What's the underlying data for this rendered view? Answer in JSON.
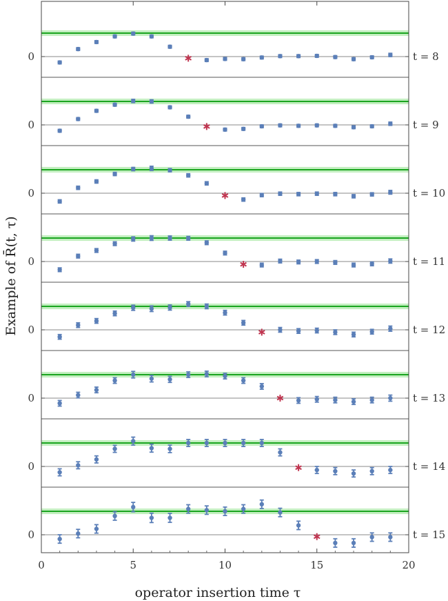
{
  "chart_data": {
    "type": "scatter",
    "xlabel": "operator insertion time τ",
    "ylabel": "Example of R̄(t, τ)",
    "xlim": [
      0,
      20
    ],
    "x_ticks": [
      "0",
      "5",
      "10",
      "15",
      "20"
    ],
    "y_tick_label": "0",
    "grid": false,
    "colors": {
      "points": "#5b7fb8",
      "starred": "#c0344f",
      "band_line": "#1aa520",
      "band_fill": "#b8ecb5",
      "separator": "#555555"
    },
    "panels": [
      {
        "label": "t = 8",
        "t": 8,
        "band": 1.0,
        "band_err": 0.12,
        "points": [
          {
            "x": 1,
            "y": -0.25,
            "e": 0.06
          },
          {
            "x": 2,
            "y": 0.32,
            "e": 0.06
          },
          {
            "x": 3,
            "y": 0.62,
            "e": 0.06
          },
          {
            "x": 4,
            "y": 0.86,
            "e": 0.06
          },
          {
            "x": 5,
            "y": 0.98,
            "e": 0.06
          },
          {
            "x": 6,
            "y": 0.86,
            "e": 0.06
          },
          {
            "x": 7,
            "y": 0.42,
            "e": 0.06
          },
          {
            "x": 8,
            "y": -0.07,
            "e": 0.06,
            "star": true
          },
          {
            "x": 9,
            "y": -0.15,
            "e": 0.06
          },
          {
            "x": 10,
            "y": -0.1,
            "e": 0.06
          },
          {
            "x": 11,
            "y": -0.11,
            "e": 0.06
          },
          {
            "x": 12,
            "y": -0.04,
            "e": 0.06
          },
          {
            "x": 13,
            "y": 0.02,
            "e": 0.06
          },
          {
            "x": 14,
            "y": 0.02,
            "e": 0.06
          },
          {
            "x": 15,
            "y": 0.03,
            "e": 0.06
          },
          {
            "x": 16,
            "y": -0.02,
            "e": 0.06
          },
          {
            "x": 17,
            "y": -0.11,
            "e": 0.06
          },
          {
            "x": 18,
            "y": -0.03,
            "e": 0.06
          },
          {
            "x": 19,
            "y": 0.07,
            "e": 0.07
          }
        ]
      },
      {
        "label": "t = 9",
        "t": 9,
        "band": 1.0,
        "band_err": 0.12,
        "points": [
          {
            "x": 1,
            "y": -0.25,
            "e": 0.06
          },
          {
            "x": 2,
            "y": 0.25,
            "e": 0.06
          },
          {
            "x": 3,
            "y": 0.6,
            "e": 0.06
          },
          {
            "x": 4,
            "y": 0.86,
            "e": 0.06
          },
          {
            "x": 5,
            "y": 1.02,
            "e": 0.07
          },
          {
            "x": 6,
            "y": 1.0,
            "e": 0.07
          },
          {
            "x": 7,
            "y": 0.75,
            "e": 0.06
          },
          {
            "x": 8,
            "y": 0.35,
            "e": 0.06
          },
          {
            "x": 9,
            "y": -0.07,
            "e": 0.06,
            "star": true
          },
          {
            "x": 10,
            "y": -0.2,
            "e": 0.06
          },
          {
            "x": 11,
            "y": -0.17,
            "e": 0.06
          },
          {
            "x": 12,
            "y": -0.06,
            "e": 0.06
          },
          {
            "x": 13,
            "y": -0.02,
            "e": 0.06
          },
          {
            "x": 14,
            "y": -0.04,
            "e": 0.06
          },
          {
            "x": 15,
            "y": -0.02,
            "e": 0.06
          },
          {
            "x": 16,
            "y": -0.04,
            "e": 0.06
          },
          {
            "x": 17,
            "y": -0.1,
            "e": 0.06
          },
          {
            "x": 18,
            "y": -0.06,
            "e": 0.06
          },
          {
            "x": 19,
            "y": 0.05,
            "e": 0.07
          }
        ]
      },
      {
        "label": "t = 10",
        "t": 10,
        "band": 1.0,
        "band_err": 0.12,
        "points": [
          {
            "x": 1,
            "y": -0.35,
            "e": 0.07
          },
          {
            "x": 2,
            "y": 0.23,
            "e": 0.07
          },
          {
            "x": 3,
            "y": 0.5,
            "e": 0.07
          },
          {
            "x": 4,
            "y": 0.82,
            "e": 0.07
          },
          {
            "x": 5,
            "y": 1.03,
            "e": 0.07
          },
          {
            "x": 6,
            "y": 1.06,
            "e": 0.09
          },
          {
            "x": 7,
            "y": 0.98,
            "e": 0.07
          },
          {
            "x": 8,
            "y": 0.76,
            "e": 0.07
          },
          {
            "x": 9,
            "y": 0.42,
            "e": 0.07
          },
          {
            "x": 10,
            "y": -0.1,
            "e": 0.07,
            "star": true
          },
          {
            "x": 11,
            "y": -0.27,
            "e": 0.07
          },
          {
            "x": 12,
            "y": -0.08,
            "e": 0.07
          },
          {
            "x": 13,
            "y": -0.02,
            "e": 0.07
          },
          {
            "x": 14,
            "y": -0.04,
            "e": 0.07
          },
          {
            "x": 15,
            "y": -0.02,
            "e": 0.07
          },
          {
            "x": 16,
            "y": -0.04,
            "e": 0.07
          },
          {
            "x": 17,
            "y": -0.13,
            "e": 0.07
          },
          {
            "x": 18,
            "y": -0.05,
            "e": 0.07
          },
          {
            "x": 19,
            "y": 0.04,
            "e": 0.08
          }
        ]
      },
      {
        "label": "t = 11",
        "t": 11,
        "band": 1.0,
        "band_err": 0.12,
        "points": [
          {
            "x": 1,
            "y": -0.35,
            "e": 0.08
          },
          {
            "x": 2,
            "y": 0.23,
            "e": 0.08
          },
          {
            "x": 3,
            "y": 0.47,
            "e": 0.08
          },
          {
            "x": 4,
            "y": 0.76,
            "e": 0.08
          },
          {
            "x": 5,
            "y": 0.96,
            "e": 0.09
          },
          {
            "x": 6,
            "y": 1.0,
            "e": 0.1
          },
          {
            "x": 7,
            "y": 1.0,
            "e": 0.09
          },
          {
            "x": 8,
            "y": 0.99,
            "e": 0.08
          },
          {
            "x": 9,
            "y": 0.8,
            "e": 0.08
          },
          {
            "x": 10,
            "y": 0.36,
            "e": 0.08
          },
          {
            "x": 11,
            "y": -0.12,
            "e": 0.08,
            "star": true
          },
          {
            "x": 12,
            "y": -0.15,
            "e": 0.08
          },
          {
            "x": 13,
            "y": 0.02,
            "e": 0.08
          },
          {
            "x": 14,
            "y": -0.02,
            "e": 0.08
          },
          {
            "x": 15,
            "y": 0.0,
            "e": 0.08
          },
          {
            "x": 16,
            "y": -0.04,
            "e": 0.08
          },
          {
            "x": 17,
            "y": -0.15,
            "e": 0.08
          },
          {
            "x": 18,
            "y": -0.1,
            "e": 0.08
          },
          {
            "x": 19,
            "y": 0.02,
            "e": 0.09
          }
        ]
      },
      {
        "label": "t = 12",
        "t": 12,
        "band": 1.0,
        "band_err": 0.12,
        "points": [
          {
            "x": 1,
            "y": -0.3,
            "e": 0.1
          },
          {
            "x": 2,
            "y": 0.2,
            "e": 0.1
          },
          {
            "x": 3,
            "y": 0.38,
            "e": 0.1
          },
          {
            "x": 4,
            "y": 0.7,
            "e": 0.1
          },
          {
            "x": 5,
            "y": 0.94,
            "e": 0.11
          },
          {
            "x": 6,
            "y": 0.9,
            "e": 0.12
          },
          {
            "x": 7,
            "y": 0.95,
            "e": 0.11
          },
          {
            "x": 8,
            "y": 1.1,
            "e": 0.1
          },
          {
            "x": 9,
            "y": 1.0,
            "e": 0.1
          },
          {
            "x": 10,
            "y": 0.73,
            "e": 0.1
          },
          {
            "x": 11,
            "y": 0.3,
            "e": 0.1
          },
          {
            "x": 12,
            "y": -0.1,
            "e": 0.1,
            "star": true
          },
          {
            "x": 13,
            "y": 0.0,
            "e": 0.1
          },
          {
            "x": 14,
            "y": -0.05,
            "e": 0.1
          },
          {
            "x": 15,
            "y": -0.03,
            "e": 0.1
          },
          {
            "x": 16,
            "y": -0.1,
            "e": 0.1
          },
          {
            "x": 17,
            "y": -0.2,
            "e": 0.1
          },
          {
            "x": 18,
            "y": -0.08,
            "e": 0.1
          },
          {
            "x": 19,
            "y": 0.05,
            "e": 0.11
          }
        ]
      },
      {
        "label": "t = 13",
        "t": 13,
        "band": 1.0,
        "band_err": 0.12,
        "points": [
          {
            "x": 1,
            "y": -0.22,
            "e": 0.12
          },
          {
            "x": 2,
            "y": 0.13,
            "e": 0.12
          },
          {
            "x": 3,
            "y": 0.35,
            "e": 0.12
          },
          {
            "x": 4,
            "y": 0.75,
            "e": 0.12
          },
          {
            "x": 5,
            "y": 1.0,
            "e": 0.14
          },
          {
            "x": 6,
            "y": 0.83,
            "e": 0.14
          },
          {
            "x": 7,
            "y": 0.8,
            "e": 0.13
          },
          {
            "x": 8,
            "y": 1.0,
            "e": 0.12
          },
          {
            "x": 9,
            "y": 1.03,
            "e": 0.12
          },
          {
            "x": 10,
            "y": 0.94,
            "e": 0.12
          },
          {
            "x": 11,
            "y": 0.75,
            "e": 0.12
          },
          {
            "x": 12,
            "y": 0.5,
            "e": 0.12
          },
          {
            "x": 13,
            "y": 0.0,
            "e": 0.12,
            "star": true
          },
          {
            "x": 14,
            "y": -0.1,
            "e": 0.12
          },
          {
            "x": 15,
            "y": -0.05,
            "e": 0.12
          },
          {
            "x": 16,
            "y": -0.08,
            "e": 0.12
          },
          {
            "x": 17,
            "y": -0.15,
            "e": 0.12
          },
          {
            "x": 18,
            "y": -0.08,
            "e": 0.12
          },
          {
            "x": 19,
            "y": 0.0,
            "e": 0.13
          }
        ]
      },
      {
        "label": "t = 14",
        "t": 14,
        "band": 1.0,
        "band_err": 0.12,
        "points": [
          {
            "x": 1,
            "y": -0.25,
            "e": 0.15
          },
          {
            "x": 2,
            "y": 0.05,
            "e": 0.15
          },
          {
            "x": 3,
            "y": 0.3,
            "e": 0.15
          },
          {
            "x": 4,
            "y": 0.75,
            "e": 0.15
          },
          {
            "x": 5,
            "y": 1.08,
            "e": 0.17
          },
          {
            "x": 6,
            "y": 0.78,
            "e": 0.17
          },
          {
            "x": 7,
            "y": 0.75,
            "e": 0.16
          },
          {
            "x": 8,
            "y": 1.0,
            "e": 0.15
          },
          {
            "x": 9,
            "y": 1.0,
            "e": 0.15
          },
          {
            "x": 10,
            "y": 1.0,
            "e": 0.15
          },
          {
            "x": 11,
            "y": 1.0,
            "e": 0.15
          },
          {
            "x": 12,
            "y": 1.0,
            "e": 0.15
          },
          {
            "x": 13,
            "y": 0.6,
            "e": 0.15
          },
          {
            "x": 14,
            "y": -0.05,
            "e": 0.15,
            "star": true
          },
          {
            "x": 15,
            "y": -0.15,
            "e": 0.15
          },
          {
            "x": 16,
            "y": -0.2,
            "e": 0.15
          },
          {
            "x": 17,
            "y": -0.3,
            "e": 0.15
          },
          {
            "x": 18,
            "y": -0.2,
            "e": 0.15
          },
          {
            "x": 19,
            "y": -0.15,
            "e": 0.15
          }
        ]
      },
      {
        "label": "t = 15",
        "t": 15,
        "band": 1.0,
        "band_err": 0.12,
        "points": [
          {
            "x": 1,
            "y": -0.18,
            "e": 0.18
          },
          {
            "x": 2,
            "y": 0.05,
            "e": 0.18
          },
          {
            "x": 3,
            "y": 0.25,
            "e": 0.18
          },
          {
            "x": 4,
            "y": 0.8,
            "e": 0.18
          },
          {
            "x": 5,
            "y": 1.18,
            "e": 0.2
          },
          {
            "x": 6,
            "y": 0.72,
            "e": 0.2
          },
          {
            "x": 7,
            "y": 0.72,
            "e": 0.19
          },
          {
            "x": 8,
            "y": 1.1,
            "e": 0.18
          },
          {
            "x": 9,
            "y": 1.05,
            "e": 0.18
          },
          {
            "x": 10,
            "y": 1.0,
            "e": 0.18
          },
          {
            "x": 11,
            "y": 1.1,
            "e": 0.18
          },
          {
            "x": 12,
            "y": 1.3,
            "e": 0.18
          },
          {
            "x": 13,
            "y": 0.95,
            "e": 0.18
          },
          {
            "x": 14,
            "y": 0.4,
            "e": 0.18
          },
          {
            "x": 15,
            "y": -0.08,
            "e": 0.18,
            "star": true
          },
          {
            "x": 16,
            "y": -0.35,
            "e": 0.18
          },
          {
            "x": 17,
            "y": -0.35,
            "e": 0.18
          },
          {
            "x": 18,
            "y": -0.1,
            "e": 0.18
          },
          {
            "x": 19,
            "y": -0.1,
            "e": 0.18
          }
        ]
      }
    ]
  }
}
